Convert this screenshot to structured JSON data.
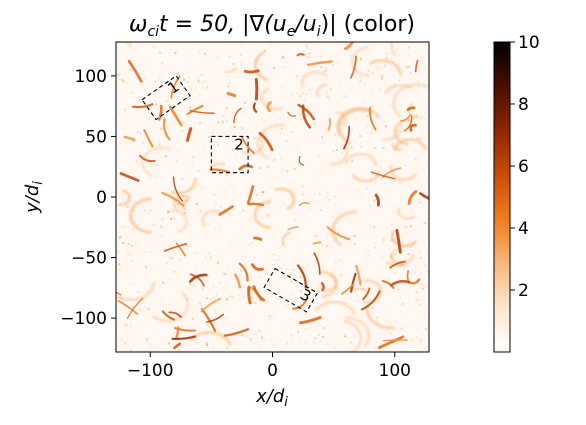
{
  "chart_data": {
    "type": "heatmap",
    "title": "ωci t = 50, |∇(ue/ui)| (color)",
    "title_parts": {
      "omega": "ω",
      "omega_sub": "ci",
      "t_eq": "t = 50, |∇(",
      "u": "u",
      "e_sub": "e",
      "slash": "/",
      "u2": "u",
      "i_sub": "i",
      "tail": ")| (color)"
    },
    "xlabel": {
      "main": "x/d",
      "sub": "i"
    },
    "ylabel": {
      "main": "y/d",
      "sub": "i"
    },
    "xlim": [
      -128,
      128
    ],
    "ylim": [
      -128,
      128
    ],
    "xticks": [
      {
        "value": -100,
        "label": "−100"
      },
      {
        "value": 0,
        "label": "0"
      },
      {
        "value": 100,
        "label": "100"
      }
    ],
    "yticks": [
      {
        "value": 100,
        "label": "100"
      },
      {
        "value": 50,
        "label": "50"
      },
      {
        "value": 0,
        "label": "0"
      },
      {
        "value": -50,
        "label": "−50"
      },
      {
        "value": -100,
        "label": "−100"
      }
    ],
    "colorbar": {
      "min": 0,
      "max": 10,
      "ticks": [
        {
          "value": 2,
          "label": "2"
        },
        {
          "value": 4,
          "label": "4"
        },
        {
          "value": 6,
          "label": "6"
        },
        {
          "value": 8,
          "label": "8"
        },
        {
          "value": 10,
          "label": "10"
        }
      ],
      "colors": [
        "#ffffff",
        "#fde6cf",
        "#f9b77a",
        "#ef7d22",
        "#cd4b06",
        "#8f2603",
        "#4a0e01",
        "#000000"
      ]
    },
    "regions": [
      {
        "label": "1",
        "center": [
          -87,
          82
        ],
        "size": [
          34,
          20
        ],
        "angle": -35
      },
      {
        "label": "2",
        "center": [
          -35,
          35
        ],
        "size": [
          30,
          30
        ],
        "angle": 0
      },
      {
        "label": "3",
        "center": [
          15,
          -77
        ],
        "size": [
          40,
          18
        ],
        "angle": 30
      }
    ]
  }
}
